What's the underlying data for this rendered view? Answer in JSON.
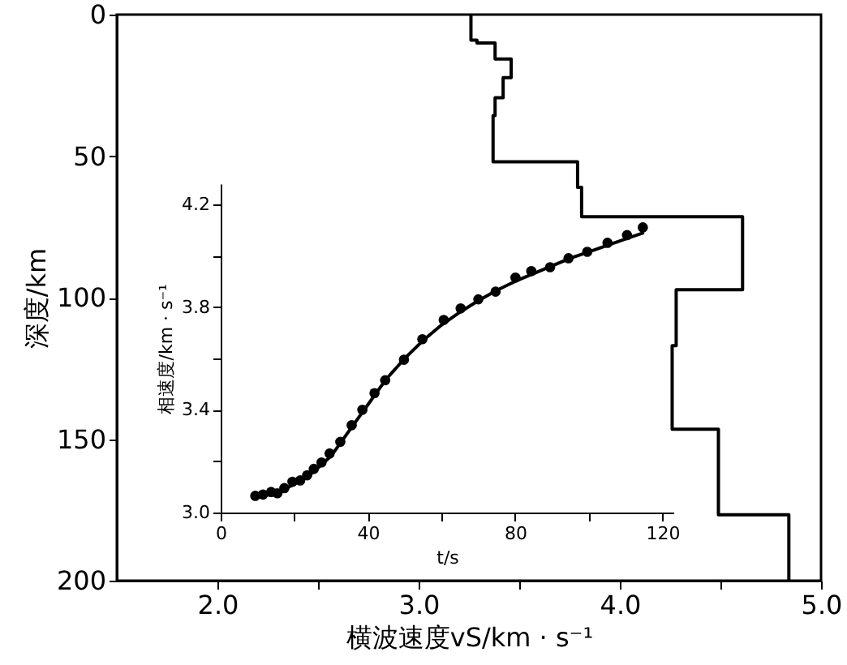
{
  "chart_data": [
    {
      "type": "line",
      "xlabel": "横波速度vS/km · s⁻¹",
      "ylabel": "深度/km",
      "x": [
        3.26,
        3.26,
        3.29,
        3.29,
        3.38,
        3.38,
        3.46,
        3.46,
        3.42,
        3.42,
        3.38,
        3.38,
        3.37,
        3.37,
        3.79,
        3.79,
        3.81,
        3.81,
        4.61,
        4.61,
        4.28,
        4.28,
        4.26,
        4.26,
        4.49,
        4.49,
        4.84,
        4.84
      ],
      "values": [
        0,
        9,
        9,
        10,
        10,
        15.7,
        15.7,
        22.3,
        22.3,
        29.4,
        29.4,
        35.7,
        35.7,
        52,
        52,
        61,
        61,
        71.4,
        71.4,
        97.2,
        97.2,
        117,
        117,
        146.5,
        146.5,
        176.7,
        176.7,
        200
      ],
      "color": "#000000",
      "line_style": "solid",
      "xlim": [
        1.5,
        5.0
      ],
      "ylim": [
        200,
        0
      ],
      "xticks": [
        {
          "value": 2,
          "label": "2.0"
        },
        {
          "value": 2.5,
          "label": null
        },
        {
          "value": 3,
          "label": "3.0"
        },
        {
          "value": 3.5,
          "label": null
        },
        {
          "value": 4,
          "label": "4.0"
        },
        {
          "value": 4.5,
          "label": null
        },
        {
          "value": 5,
          "label": "5.0"
        }
      ],
      "yticks": [
        0,
        50,
        100,
        150,
        200
      ],
      "grid": false
    },
    {
      "type": "scatter",
      "xlabel": "t/s",
      "ylabel": "相速度/km · s⁻¹",
      "series": [
        {
          "type": "scatter",
          "color": "#000000",
          "marker": "circle",
          "x": [
            9.4,
            11.5,
            13.7,
            15.4,
            17.3,
            19.5,
            21.6,
            23.5,
            25.3,
            27.4,
            29.6,
            32.5,
            35.6,
            38.5,
            41.8,
            44.7,
            49.8,
            54.8,
            60.6,
            65.2,
            70.0,
            74.7,
            80.1,
            84.4,
            89.5,
            94.5,
            99.6,
            105.1,
            110.4,
            114.7
          ],
          "values": [
            3.065,
            3.07,
            3.08,
            3.075,
            3.095,
            3.12,
            3.125,
            3.145,
            3.17,
            3.195,
            3.23,
            3.275,
            3.34,
            3.4,
            3.465,
            3.515,
            3.595,
            3.675,
            3.75,
            3.795,
            3.83,
            3.86,
            3.915,
            3.94,
            3.955,
            3.99,
            4.015,
            4.05,
            4.08,
            4.11
          ]
        },
        {
          "type": "line",
          "color": "#000000",
          "line_style": "solid",
          "x": [
            10,
            15,
            20,
            25,
            30,
            35,
            40,
            45,
            50,
            55,
            60,
            65,
            70,
            75,
            80,
            85,
            90,
            95,
            100,
            105,
            110,
            115
          ],
          "values": [
            3.06,
            3.075,
            3.11,
            3.155,
            3.22,
            3.32,
            3.42,
            3.52,
            3.6,
            3.67,
            3.73,
            3.78,
            3.825,
            3.865,
            3.9,
            3.93,
            3.96,
            3.99,
            4.015,
            4.04,
            4.065,
            4.09
          ]
        }
      ],
      "xlim": [
        0,
        123
      ],
      "ylim": [
        3.0,
        4.28
      ],
      "xticks": [
        0,
        {
          "value": 20,
          "label": null
        },
        40,
        {
          "value": 60,
          "label": null
        },
        80,
        {
          "value": 100,
          "label": null
        },
        120
      ],
      "yticks": [
        {
          "value": 3,
          "label": "3.0"
        },
        {
          "value": 3.2,
          "label": null
        },
        3.4,
        {
          "value": 3.6,
          "label": null
        },
        3.8,
        {
          "value": 4,
          "label": null
        },
        4.2
      ],
      "grid": false
    }
  ]
}
